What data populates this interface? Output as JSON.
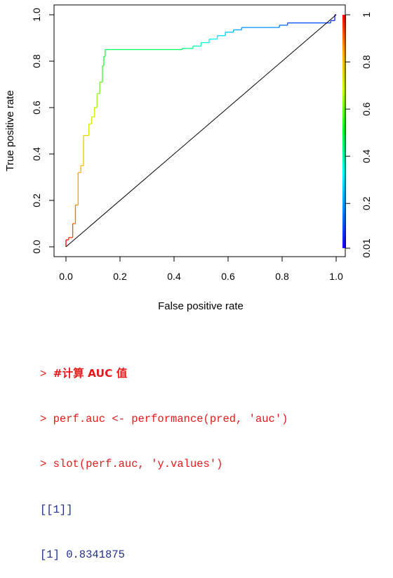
{
  "chart_data": {
    "type": "line",
    "xlabel": "False positive rate",
    "ylabel": "True positive rate",
    "xlim": [
      0,
      1
    ],
    "ylim": [
      0,
      1
    ],
    "x_ticks": [
      "0.0",
      "0.2",
      "0.4",
      "0.6",
      "0.8",
      "1.0"
    ],
    "y_ticks": [
      "0.0",
      "0.2",
      "0.4",
      "0.6",
      "0.8",
      "1.0"
    ],
    "colorbar": {
      "tick_labels": [
        "0.01",
        "0.2",
        "0.4",
        "0.6",
        "0.8",
        "1"
      ],
      "tick_values": [
        0.01,
        0.2,
        0.4,
        0.6,
        0.8,
        1.0
      ],
      "range": [
        0.01,
        1.0
      ],
      "palette": "rainbow"
    },
    "grid": false,
    "series": [
      {
        "style": "step",
        "points": [
          [
            0.0,
            0.0
          ],
          [
            0.0,
            0.03
          ],
          [
            0.01,
            0.03
          ],
          [
            0.01,
            0.04
          ],
          [
            0.025,
            0.04
          ],
          [
            0.025,
            0.1
          ],
          [
            0.035,
            0.1
          ],
          [
            0.035,
            0.18
          ],
          [
            0.045,
            0.18
          ],
          [
            0.045,
            0.32
          ],
          [
            0.055,
            0.32
          ],
          [
            0.055,
            0.35
          ],
          [
            0.065,
            0.35
          ],
          [
            0.065,
            0.48
          ],
          [
            0.085,
            0.48
          ],
          [
            0.085,
            0.53
          ],
          [
            0.095,
            0.53
          ],
          [
            0.095,
            0.56
          ],
          [
            0.105,
            0.56
          ],
          [
            0.105,
            0.6
          ],
          [
            0.115,
            0.6
          ],
          [
            0.115,
            0.66
          ],
          [
            0.125,
            0.66
          ],
          [
            0.125,
            0.71
          ],
          [
            0.135,
            0.71
          ],
          [
            0.135,
            0.78
          ],
          [
            0.14,
            0.78
          ],
          [
            0.14,
            0.82
          ],
          [
            0.145,
            0.82
          ],
          [
            0.145,
            0.85
          ],
          [
            0.43,
            0.85
          ],
          [
            0.43,
            0.855
          ],
          [
            0.47,
            0.855
          ],
          [
            0.47,
            0.865
          ],
          [
            0.5,
            0.865
          ],
          [
            0.5,
            0.88
          ],
          [
            0.53,
            0.88
          ],
          [
            0.53,
            0.895
          ],
          [
            0.56,
            0.895
          ],
          [
            0.56,
            0.91
          ],
          [
            0.59,
            0.91
          ],
          [
            0.59,
            0.925
          ],
          [
            0.62,
            0.925
          ],
          [
            0.62,
            0.935
          ],
          [
            0.65,
            0.935
          ],
          [
            0.65,
            0.945
          ],
          [
            0.79,
            0.945
          ],
          [
            0.79,
            0.955
          ],
          [
            0.82,
            0.955
          ],
          [
            0.82,
            0.965
          ],
          [
            0.98,
            0.965
          ],
          [
            0.98,
            0.975
          ],
          [
            0.995,
            0.975
          ],
          [
            0.995,
            1.0
          ],
          [
            1.0,
            1.0
          ]
        ]
      },
      {
        "style": "diagonal",
        "points": [
          [
            0,
            0
          ],
          [
            1,
            1
          ]
        ]
      }
    ]
  },
  "console": {
    "lines": [
      {
        "prompt": "> ",
        "text": "#计算 AUC 值",
        "kind": "cmd"
      },
      {
        "prompt": "> ",
        "text": "perf.auc <- performance(pred, 'auc')",
        "kind": "cmd"
      },
      {
        "prompt": "> ",
        "text": "slot(perf.auc, 'y.values')",
        "kind": "cmd"
      },
      {
        "prompt": "",
        "text": "[[1]]",
        "kind": "out"
      },
      {
        "prompt": "",
        "text": "[1] 0.8341875",
        "kind": "out"
      }
    ]
  }
}
